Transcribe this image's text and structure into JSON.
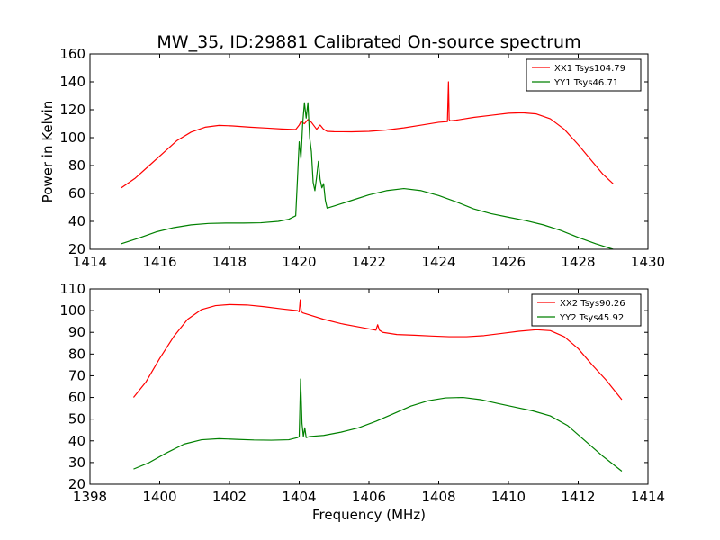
{
  "title": "MW_35, ID:29881 Calibrated On-source spectrum",
  "xlabel": "Frequency (MHz)",
  "chart_data": [
    {
      "type": "line",
      "title": "MW_35, ID:29881 Calibrated On-source spectrum",
      "xlabel": "",
      "ylabel": "Power in Kelvin",
      "xlim": [
        1414,
        1430
      ],
      "ylim": [
        20,
        160
      ],
      "xticks": [
        1414,
        1416,
        1418,
        1420,
        1422,
        1424,
        1426,
        1428,
        1430
      ],
      "yticks": [
        20,
        40,
        60,
        80,
        100,
        120,
        140,
        160
      ],
      "grid": false,
      "legend_position": "top-right",
      "series": [
        {
          "name": "XX1 Tsys104.79",
          "color": "#ff0000",
          "x": [
            1414.9,
            1415.3,
            1415.7,
            1416.1,
            1416.5,
            1416.9,
            1417.3,
            1417.7,
            1418.1,
            1418.6,
            1419.1,
            1419.5,
            1419.9,
            1420.0,
            1420.05,
            1420.15,
            1420.25,
            1420.35,
            1420.5,
            1420.6,
            1420.7,
            1420.8,
            1421.0,
            1421.5,
            1422.0,
            1422.5,
            1423.0,
            1423.5,
            1424.0,
            1424.25,
            1424.28,
            1424.3,
            1424.33,
            1424.5,
            1425.0,
            1425.5,
            1426.0,
            1426.4,
            1426.8,
            1427.2,
            1427.6,
            1428.0,
            1428.4,
            1428.7,
            1429.0
          ],
          "y": [
            64,
            71,
            80,
            89,
            98,
            104,
            107.5,
            108.8,
            108.4,
            107.5,
            106.8,
            106.2,
            105.8,
            109,
            111.5,
            110,
            113,
            111,
            106,
            109,
            106,
            104.5,
            104.3,
            104.2,
            104.5,
            105.5,
            107,
            109,
            111,
            111.5,
            140,
            113,
            112,
            112.5,
            114.5,
            116,
            117.5,
            117.8,
            117,
            113.5,
            106,
            95,
            83,
            74,
            67
          ]
        },
        {
          "name": "YY1 Tsys46.71",
          "color": "#008000",
          "x": [
            1414.9,
            1415.4,
            1415.9,
            1416.4,
            1416.9,
            1417.4,
            1417.9,
            1418.4,
            1418.9,
            1419.4,
            1419.7,
            1419.9,
            1419.95,
            1420.0,
            1420.05,
            1420.1,
            1420.15,
            1420.2,
            1420.25,
            1420.3,
            1420.35,
            1420.4,
            1420.45,
            1420.5,
            1420.55,
            1420.6,
            1420.65,
            1420.7,
            1420.75,
            1420.8,
            1421.0,
            1421.5,
            1422.0,
            1422.5,
            1423.0,
            1423.5,
            1424.0,
            1424.5,
            1425.0,
            1425.5,
            1426.0,
            1426.5,
            1427.0,
            1427.5,
            1428.0,
            1428.5,
            1429.0
          ],
          "y": [
            24,
            28,
            32.5,
            35.5,
            37.5,
            38.5,
            38.8,
            38.8,
            39,
            40,
            41.5,
            44,
            70,
            97,
            85,
            110,
            125,
            114,
            125,
            100,
            90,
            68,
            62,
            72,
            83,
            70,
            64,
            67,
            55,
            49.5,
            51,
            55,
            59,
            62,
            63.5,
            62,
            58.5,
            54,
            49,
            45.5,
            43,
            40.5,
            37.5,
            33.5,
            28.5,
            24,
            20
          ]
        }
      ]
    },
    {
      "type": "line",
      "title": "",
      "xlabel": "Frequency (MHz)",
      "ylabel": "",
      "xlim": [
        1398,
        1414
      ],
      "ylim": [
        20,
        110
      ],
      "xticks": [
        1398,
        1400,
        1402,
        1404,
        1406,
        1408,
        1410,
        1412,
        1414
      ],
      "yticks": [
        20,
        30,
        40,
        50,
        60,
        70,
        80,
        90,
        100,
        110
      ],
      "grid": false,
      "legend_position": "top-right",
      "series": [
        {
          "name": "XX2 Tsys90.26",
          "color": "#ff0000",
          "x": [
            1399.25,
            1399.6,
            1400.0,
            1400.4,
            1400.8,
            1401.2,
            1401.6,
            1402.0,
            1402.5,
            1403.0,
            1403.5,
            1403.95,
            1404.0,
            1404.03,
            1404.06,
            1404.1,
            1404.3,
            1404.7,
            1405.2,
            1405.7,
            1406.2,
            1406.25,
            1406.3,
            1406.4,
            1406.8,
            1407.3,
            1407.8,
            1408.3,
            1408.8,
            1409.3,
            1409.8,
            1410.3,
            1410.8,
            1411.2,
            1411.6,
            1412.0,
            1412.4,
            1412.8,
            1413.25
          ],
          "y": [
            60,
            67,
            78,
            88,
            96,
            100.5,
            102.3,
            102.8,
            102.6,
            101.8,
            100.8,
            100,
            99.5,
            105,
            99.5,
            99,
            98,
            96,
            94,
            92.5,
            91,
            93.5,
            91,
            90,
            89,
            88.7,
            88.3,
            88,
            88,
            88.5,
            89.5,
            90.5,
            91.2,
            90.8,
            88,
            82.5,
            75,
            68,
            59
          ]
        },
        {
          "name": "YY2 Tsys45.92",
          "color": "#008000",
          "x": [
            1399.25,
            1399.7,
            1400.2,
            1400.7,
            1401.2,
            1401.7,
            1402.2,
            1402.7,
            1403.2,
            1403.7,
            1403.95,
            1404.0,
            1404.04,
            1404.08,
            1404.12,
            1404.16,
            1404.2,
            1404.3,
            1404.7,
            1405.2,
            1405.7,
            1406.2,
            1406.7,
            1407.2,
            1407.7,
            1408.2,
            1408.7,
            1409.2,
            1409.7,
            1410.2,
            1410.7,
            1411.2,
            1411.7,
            1412.2,
            1412.7,
            1413.25
          ],
          "y": [
            27,
            30,
            34.5,
            38.5,
            40.5,
            41,
            40.7,
            40.4,
            40.3,
            40.5,
            41.5,
            42,
            68.5,
            48,
            42,
            46,
            41.5,
            42,
            42.5,
            44,
            46,
            49,
            52.5,
            56,
            58.5,
            59.8,
            60,
            59,
            57.2,
            55.5,
            53.8,
            51.5,
            47,
            40,
            33,
            26
          ]
        }
      ]
    }
  ]
}
